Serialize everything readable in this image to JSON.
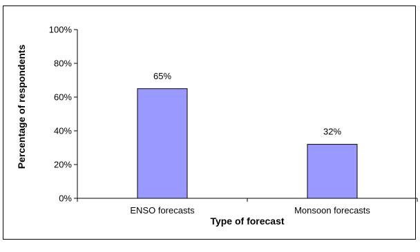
{
  "chart_data": {
    "type": "bar",
    "title": "",
    "xlabel": "Type of forecast",
    "ylabel": "Percentage of respondents",
    "categories": [
      "ENSO forecasts",
      "Monsoon forecasts"
    ],
    "values": [
      65,
      32
    ],
    "value_labels": [
      "65%",
      "32%"
    ],
    "ylim": [
      0,
      100
    ],
    "yticks": [
      "0%",
      "20%",
      "40%",
      "60%",
      "80%",
      "100%"
    ],
    "grid": false,
    "legend": "none",
    "bar_color": "#9999ff"
  }
}
